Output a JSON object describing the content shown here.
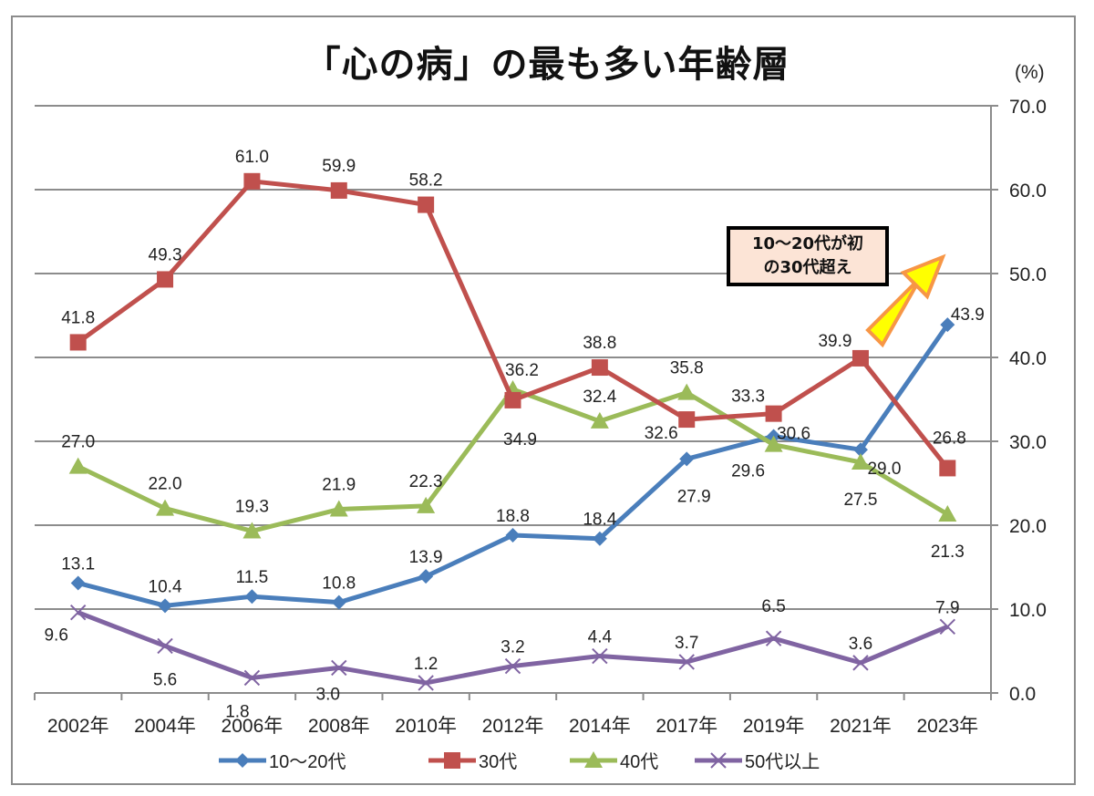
{
  "chart_data": {
    "type": "line",
    "title": "「心の病」の最も多い年齢層",
    "ylabel": "(%)",
    "xlabel": "",
    "ylim": [
      0,
      70
    ],
    "yticks": [
      "0.0",
      "10.0",
      "20.0",
      "30.0",
      "40.0",
      "50.0",
      "60.0",
      "70.0"
    ],
    "y_axis_side": "right",
    "grid": true,
    "legend_position": "bottom",
    "categories": [
      "2002年",
      "2004年",
      "2006年",
      "2008年",
      "2010年",
      "2012年",
      "2014年",
      "2017年",
      "2019年",
      "2021年",
      "2023年"
    ],
    "series": [
      {
        "name": "10～20代",
        "color": "#4a7ebb",
        "marker": "diamond",
        "values": [
          13.1,
          10.4,
          11.5,
          10.8,
          13.9,
          18.8,
          18.4,
          27.9,
          30.6,
          29.0,
          43.9
        ],
        "labels": [
          "13.1",
          "10.4",
          "11.5",
          "10.8",
          "13.9",
          "18.8",
          "18.4",
          "27.9",
          "30.6",
          "29.0",
          "43.9"
        ]
      },
      {
        "name": "30代",
        "color": "#c0504d",
        "marker": "square",
        "values": [
          41.8,
          49.3,
          61.0,
          59.9,
          58.2,
          34.9,
          38.8,
          32.6,
          33.3,
          39.9,
          26.8
        ],
        "labels": [
          "41.8",
          "49.3",
          "61.0",
          "59.9",
          "58.2",
          "34.9",
          "38.8",
          "32.6",
          "33.3",
          "39.9",
          "26.8"
        ]
      },
      {
        "name": "40代",
        "color": "#9bbb59",
        "marker": "triangle",
        "values": [
          27.0,
          22.0,
          19.3,
          21.9,
          22.3,
          36.2,
          32.4,
          35.8,
          29.6,
          27.5,
          21.3
        ],
        "labels": [
          "27.0",
          "22.0",
          "19.3",
          "21.9",
          "22.3",
          "36.2",
          "32.4",
          "35.8",
          "29.6",
          "27.5",
          "21.3"
        ]
      },
      {
        "name": "50代以上",
        "color": "#8064a2",
        "marker": "x",
        "values": [
          9.6,
          5.6,
          1.8,
          3.0,
          1.2,
          3.2,
          4.4,
          3.7,
          6.5,
          3.6,
          7.9
        ],
        "labels": [
          "9.6",
          "5.6",
          "1.8",
          "3.0",
          "1.2",
          "3.2",
          "4.4",
          "3.7",
          "6.5",
          "3.6",
          "7.9"
        ]
      }
    ],
    "annotation": {
      "text_line1": "10～20代が初",
      "text_line2": "の30代超え",
      "box_color": "#fce4d6",
      "arrow_fill": "#ffff00",
      "arrow_stroke": "#f79646"
    }
  }
}
